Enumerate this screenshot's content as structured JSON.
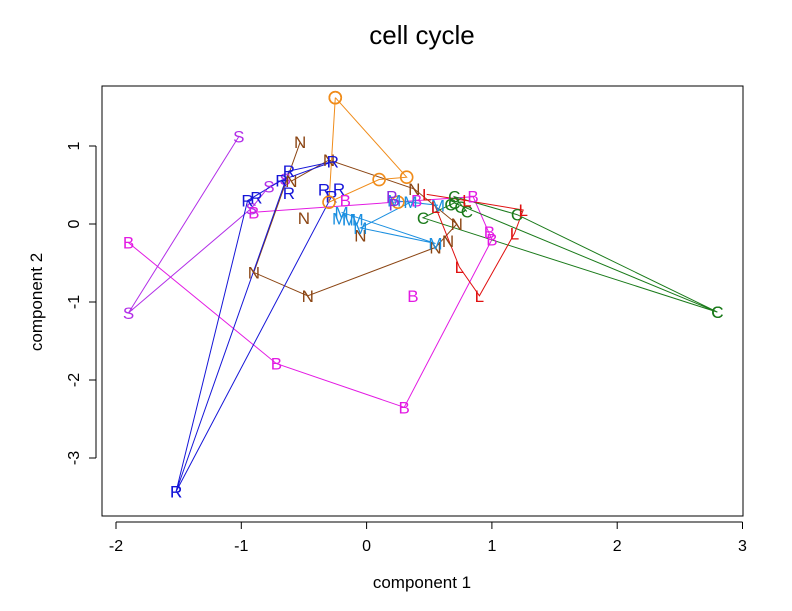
{
  "chart_data": {
    "type": "scatter",
    "title": "cell cycle",
    "xlabel": "component 1",
    "ylabel": "component 2",
    "xlim": [
      -2.1,
      3.0
    ],
    "ylim": [
      -3.6,
      1.8
    ],
    "xticks": [
      -2,
      -1,
      0,
      1,
      2,
      3
    ],
    "yticks": [
      -3,
      -2,
      -1,
      0,
      1
    ],
    "xtick_labels": [
      "-2",
      "-1",
      "0",
      "1",
      "2",
      "3"
    ],
    "ytick_labels": [
      "-3",
      "-2",
      "-1",
      "0",
      "1"
    ],
    "grid": false,
    "series": [
      {
        "marker": "B",
        "color": "#e31ae3",
        "connected": true,
        "points": [
          [
            -1.9,
            -0.24
          ],
          [
            -0.72,
            -1.79
          ],
          [
            0.3,
            -2.35
          ],
          [
            1.0,
            -0.2
          ],
          [
            0.85,
            0.35
          ],
          [
            0.4,
            0.3
          ],
          [
            -0.9,
            0.15
          ]
        ]
      },
      {
        "marker": "B",
        "color": "#e31ae3",
        "connected": false,
        "points": [
          [
            0.98,
            -0.1
          ],
          [
            0.37,
            -0.92
          ],
          [
            -0.17,
            0.3
          ]
        ]
      },
      {
        "marker": "S",
        "color": "#b22ee8",
        "connected": true,
        "points": [
          [
            -1.02,
            1.12
          ],
          [
            -1.9,
            -1.14
          ],
          [
            -0.92,
            0.2
          ],
          [
            -0.78,
            0.48
          ],
          [
            -0.65,
            0.58
          ]
        ]
      },
      {
        "marker": "N",
        "color": "#8b4513",
        "connected": true,
        "points": [
          [
            -0.53,
            1.05
          ],
          [
            -0.9,
            -0.62
          ],
          [
            -0.47,
            -0.92
          ],
          [
            0.55,
            -0.3
          ],
          [
            0.72,
            0.0
          ],
          [
            0.38,
            0.45
          ],
          [
            -0.3,
            0.82
          ],
          [
            -0.6,
            0.55
          ]
        ]
      },
      {
        "marker": "N",
        "color": "#8b4513",
        "connected": false,
        "points": [
          [
            -0.5,
            0.08
          ],
          [
            0.65,
            -0.22
          ],
          [
            -0.05,
            -0.15
          ]
        ]
      },
      {
        "marker": "R",
        "color": "#1515d8",
        "connected": true,
        "points": [
          [
            -1.52,
            -3.43
          ],
          [
            -0.62,
            0.68
          ],
          [
            -0.27,
            0.8
          ],
          [
            -0.68,
            0.56
          ],
          [
            -0.95,
            0.3
          ],
          [
            -1.52,
            -3.43
          ],
          [
            -0.28,
            0.35
          ]
        ]
      },
      {
        "marker": "R",
        "color": "#1515d8",
        "connected": false,
        "points": [
          [
            -0.88,
            0.34
          ],
          [
            -0.62,
            0.4
          ],
          [
            -0.34,
            0.44
          ],
          [
            -0.22,
            0.45
          ]
        ]
      },
      {
        "marker": "O",
        "color": "#f08c1a",
        "connected": true,
        "points": [
          [
            -0.25,
            1.62
          ],
          [
            0.32,
            0.6
          ],
          [
            0.1,
            0.57
          ],
          [
            -0.3,
            0.28
          ],
          [
            -0.25,
            1.62
          ]
        ]
      },
      {
        "marker": "O",
        "color": "#f08c1a",
        "connected": false,
        "points": [
          [
            0.25,
            0.28
          ]
        ]
      },
      {
        "marker": "M",
        "color": "#1b8fe0",
        "connected": true,
        "points": [
          [
            -0.2,
            0.15
          ],
          [
            0.55,
            -0.25
          ],
          [
            -0.05,
            -0.05
          ],
          [
            0.35,
            0.28
          ],
          [
            0.57,
            0.24
          ],
          [
            0.22,
            0.3
          ]
        ]
      },
      {
        "marker": "M",
        "color": "#1b8fe0",
        "connected": false,
        "points": [
          [
            -0.22,
            0.07
          ],
          [
            -0.14,
            0.06
          ],
          [
            -0.08,
            0.06
          ]
        ]
      },
      {
        "marker": "C",
        "color": "#1a7a1a",
        "connected": true,
        "points": [
          [
            2.8,
            -1.13
          ],
          [
            0.45,
            0.08
          ],
          [
            0.7,
            0.27
          ],
          [
            2.8,
            -1.13
          ],
          [
            1.2,
            0.12
          ],
          [
            0.7,
            0.35
          ],
          [
            0.8,
            0.16
          ]
        ]
      },
      {
        "marker": "C",
        "color": "#1a7a1a",
        "connected": false,
        "points": [
          [
            0.75,
            0.22
          ],
          [
            0.67,
            0.25
          ]
        ]
      },
      {
        "marker": "L",
        "color": "#e01010",
        "connected": true,
        "points": [
          [
            0.48,
            0.38
          ],
          [
            0.8,
            0.3
          ],
          [
            1.25,
            0.18
          ],
          [
            1.18,
            -0.12
          ],
          [
            0.9,
            -0.92
          ],
          [
            0.74,
            -0.55
          ],
          [
            0.55,
            0.22
          ]
        ]
      },
      {
        "marker": "P",
        "color": "#8a2be2",
        "connected": false,
        "points": [
          [
            0.2,
            0.35
          ],
          [
            0.22,
            0.25
          ]
        ]
      }
    ]
  }
}
